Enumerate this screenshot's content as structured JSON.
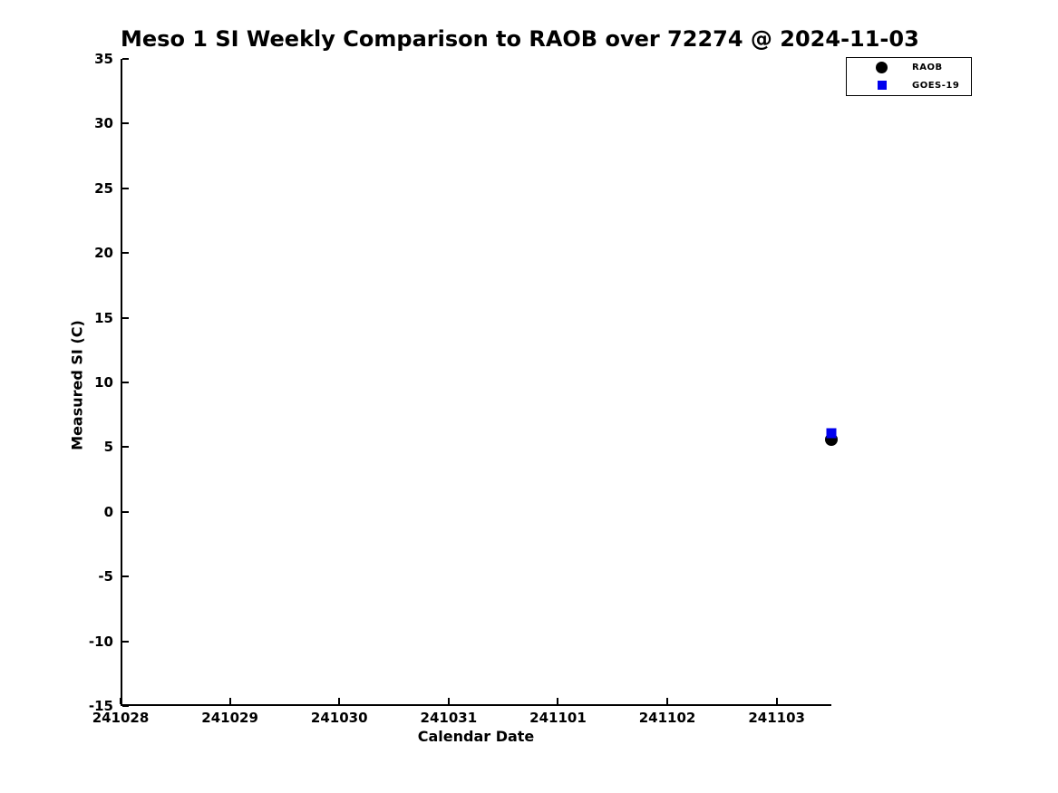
{
  "chart_data": {
    "type": "scatter",
    "title": "Meso 1 SI Weekly Comparison to RAOB over 72274 @ 2024-11-03",
    "xlabel": "Calendar Date",
    "ylabel": "Measured SI (C)",
    "xlim": [
      0,
      6.5
    ],
    "ylim": [
      -15,
      35
    ],
    "grid": false,
    "legend_position": "top-right",
    "background_color": "#ffffff",
    "x_ticks": [
      {
        "pos": 0,
        "label": "241028"
      },
      {
        "pos": 1,
        "label": "241029"
      },
      {
        "pos": 2,
        "label": "241030"
      },
      {
        "pos": 3,
        "label": "241031"
      },
      {
        "pos": 4,
        "label": "241101"
      },
      {
        "pos": 5,
        "label": "241102"
      },
      {
        "pos": 6,
        "label": "241103"
      }
    ],
    "y_ticks": [
      35,
      30,
      25,
      20,
      15,
      10,
      5,
      0,
      -5,
      -10,
      -15
    ],
    "series": [
      {
        "name": "RAOB",
        "marker": "circle",
        "color": "#000000",
        "points": [
          {
            "x": 6.5,
            "y": 5.6
          }
        ]
      },
      {
        "name": "GOES-19",
        "marker": "square",
        "color": "#0000ee",
        "points": [
          {
            "x": 6.5,
            "y": 6.1
          }
        ]
      }
    ]
  }
}
